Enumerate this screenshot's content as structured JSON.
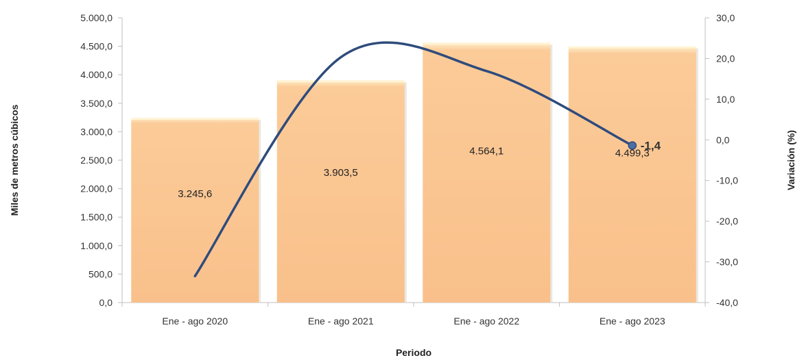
{
  "chart_data": {
    "type": "bar",
    "categories": [
      "Ene - ago 2020",
      "Ene - ago 2021",
      "Ene - ago 2022",
      "Ene - ago 2023"
    ],
    "series": [
      {
        "type": "bar",
        "axis": "left",
        "values": [
          3245.6,
          3903.5,
          4564.1,
          4499.3
        ],
        "labels": [
          "3.245,6",
          "3.903,5",
          "4.564,1",
          "4.499,3"
        ],
        "color": "#FAC592"
      },
      {
        "type": "line",
        "axis": "right",
        "values": [
          -33.5,
          20.3,
          16.9,
          -1.4
        ],
        "labels": [
          "",
          "",
          "",
          "-1,4"
        ],
        "color": "#2F4B7C"
      }
    ],
    "xlabel": "Periodo",
    "ylabel": "Miles de metros cúbicos",
    "y2label": "Variación (%)",
    "ylim": [
      0,
      5000
    ],
    "y2lim": [
      -40,
      30
    ],
    "yticks": [
      "0,0",
      "500,0",
      "1.000,0",
      "1.500,0",
      "2.000,0",
      "2.500,0",
      "3.000,0",
      "3.500,0",
      "4.000,0",
      "4.500,0",
      "5.000,0"
    ],
    "y2ticks": [
      "-40,0",
      "-30,0",
      "-20,0",
      "-10,0",
      "0,0",
      "10,0",
      "20,0",
      "30,0"
    ],
    "grid": false,
    "legend": "none"
  }
}
